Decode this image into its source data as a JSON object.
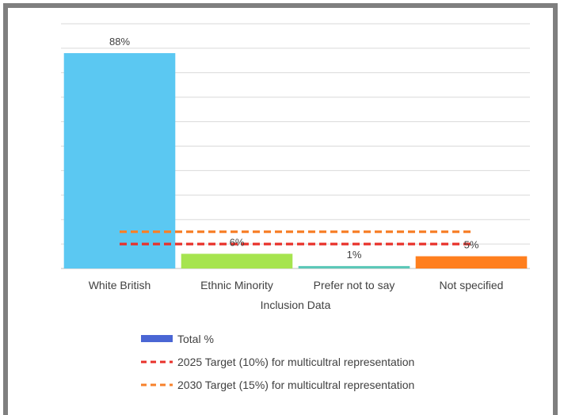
{
  "chart_data": {
    "type": "bar",
    "categories": [
      "White British",
      "Ethnic Minority",
      "Prefer not to say",
      "Not specified"
    ],
    "values": [
      88,
      6,
      1,
      5
    ],
    "data_labels": [
      "88%",
      "6%",
      "1%",
      "5%"
    ],
    "bar_colors": [
      "#5bc8f2",
      "#a6e44f",
      "#5cc8b8",
      "#ff7f1e"
    ],
    "xlabel": "Inclusion Data",
    "ylabel": "",
    "ylim": [
      0,
      100
    ],
    "grid": true,
    "reference_lines": [
      {
        "name": "2025 Target (10%) for multicultral representation",
        "value": 10,
        "color": "#e8312a",
        "style": "dashed"
      },
      {
        "name": "2030 Target (15%) for multicultral representation",
        "value": 15,
        "color": "#f7812b",
        "style": "dashed"
      }
    ],
    "legend": {
      "placement": "bottom",
      "entries": [
        {
          "label": "Total %",
          "color": "#4a66d4",
          "kind": "bar"
        },
        {
          "label": "2025 Target (10%) for multicultral representation",
          "color": "#e8312a",
          "kind": "dashed-line"
        },
        {
          "label": "2030 Target (15%) for multicultral representation",
          "color": "#f7812b",
          "kind": "dashed-line"
        }
      ]
    }
  }
}
